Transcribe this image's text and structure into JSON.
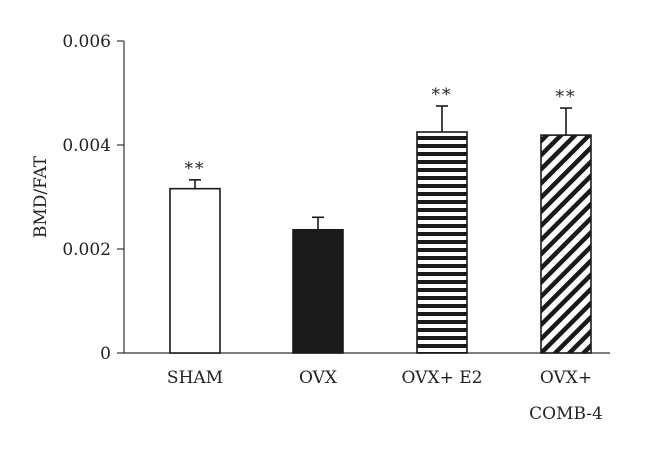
{
  "chart_data": {
    "type": "bar",
    "title": "",
    "xlabel": "",
    "ylabel": "BMD/FAT",
    "ylim": [
      0,
      0.006
    ],
    "yticks": [
      "0",
      "0.002",
      "0.004",
      "0.006"
    ],
    "ytick_values": [
      0,
      0.002,
      0.004,
      0.006
    ],
    "grid": false,
    "categories": [
      {
        "line1": "SHAM",
        "line2": ""
      },
      {
        "line1": "OVX",
        "line2": ""
      },
      {
        "line1": "OVX+ E2",
        "line2": ""
      },
      {
        "line1": "OVX+",
        "line2": "COMB-4"
      }
    ],
    "values": [
      0.00316,
      0.00237,
      0.00425,
      0.00419
    ],
    "errors": [
      0.00017,
      0.00024,
      0.0005,
      0.00052
    ],
    "significance": [
      "**",
      "",
      "**",
      "**"
    ],
    "fills": [
      "open",
      "solid",
      "horizontal-stripes",
      "diagonal-stripes"
    ],
    "colors": {
      "bar_stroke": "#1a1a1a",
      "bar_solid": "#1a1a1a",
      "bar_open": "#ffffff",
      "axis": "#333333"
    }
  }
}
